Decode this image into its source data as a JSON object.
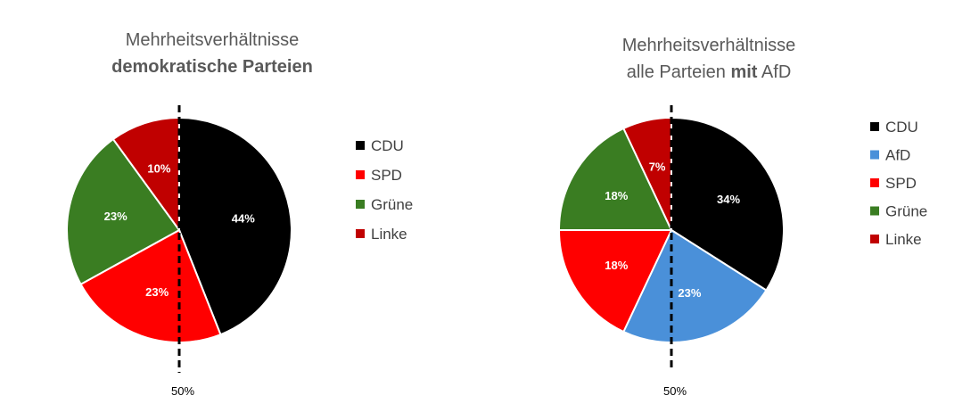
{
  "chart_data": [
    {
      "type": "pie",
      "title": [
        {
          "text": "Mehrheitsverhältnisse",
          "bold": false
        },
        {
          "text": "demokratische Parteien",
          "bold": true
        }
      ],
      "title_lines": [
        [
          {
            "text": "Mehrheitsverhältnisse",
            "bold": false
          }
        ],
        [
          {
            "text": "demokratische Parteien",
            "bold": true
          }
        ]
      ],
      "categories": [
        "CDU",
        "SPD",
        "Grüne",
        "Linke"
      ],
      "values": [
        44,
        23,
        23,
        10
      ],
      "labels": [
        "44%",
        "23%",
        "23%",
        "10%"
      ],
      "colors": [
        "#000000",
        "#ff0000",
        "#3a7d22",
        "#c00000"
      ],
      "legend": "right",
      "reference_line": {
        "label": "50%",
        "style": "dashed"
      }
    },
    {
      "type": "pie",
      "title_lines": [
        [
          {
            "text": "Mehrheitsverhältnisse",
            "bold": false
          }
        ],
        [
          {
            "text": "alle Parteien ",
            "bold": false
          },
          {
            "text": "mit",
            "bold": true
          },
          {
            "text": " AfD",
            "bold": false
          }
        ]
      ],
      "categories": [
        "CDU",
        "AfD",
        "SPD",
        "Grüne",
        "Linke"
      ],
      "values": [
        34,
        23,
        18,
        18,
        7
      ],
      "labels": [
        "34%",
        "23%",
        "18%",
        "18%",
        "7%"
      ],
      "colors": [
        "#000000",
        "#4a90d9",
        "#ff0000",
        "#3a7d22",
        "#c00000"
      ],
      "legend": "right",
      "reference_line": {
        "label": "50%",
        "style": "dashed"
      }
    }
  ]
}
